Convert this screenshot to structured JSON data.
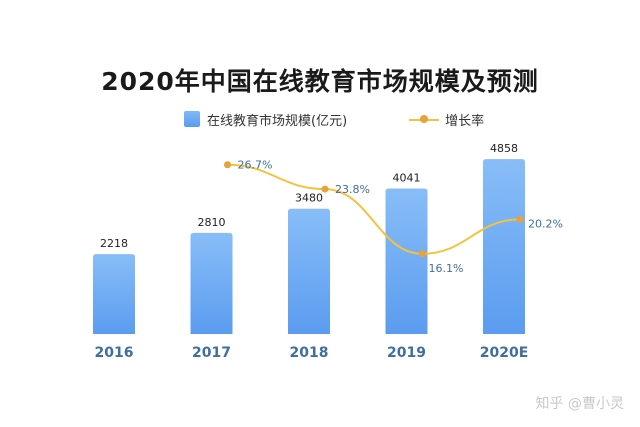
{
  "title": "2020年中国在线教育市场规模及预测",
  "legend": {
    "bar_label": "在线教育市场规模(亿元)",
    "line_label": "增长率"
  },
  "watermark": "知乎 @曹小灵",
  "colors": {
    "bar_top": "#88bdf7",
    "bar_bottom": "#5b9cf0",
    "line": "#f4c23c",
    "dot": "#e8a23a",
    "axis_label": "#3f6ea0",
    "pct_label": "#3f6ea0"
  },
  "chart_data": {
    "type": "bar",
    "title": "2020年中国在线教育市场规模及预测",
    "categories": [
      "2016",
      "2017",
      "2018",
      "2019",
      "2020E"
    ],
    "series": [
      {
        "name": "在线教育市场规模(亿元)",
        "type": "bar",
        "values": [
          2218,
          2810,
          3480,
          4041,
          4858
        ],
        "labels": [
          "2218",
          "2810",
          "3480",
          "4041",
          "4858"
        ]
      },
      {
        "name": "增长率",
        "type": "line",
        "x": [
          "2017",
          "2018",
          "2019",
          "2020E"
        ],
        "values": [
          26.7,
          23.8,
          16.1,
          20.2
        ],
        "labels": [
          "26.7%",
          "23.8%",
          "16.1%",
          "20.2%"
        ]
      }
    ],
    "ylim": [
      0,
      6500
    ],
    "grid": false,
    "legend_position": "top"
  }
}
